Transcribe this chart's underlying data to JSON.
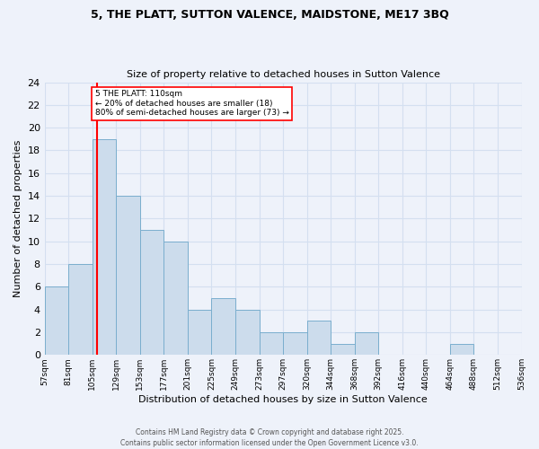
{
  "title1": "5, THE PLATT, SUTTON VALENCE, MAIDSTONE, ME17 3BQ",
  "title2": "Size of property relative to detached houses in Sutton Valence",
  "xlabel": "Distribution of detached houses by size in Sutton Valence",
  "ylabel": "Number of detached properties",
  "bar_values": [
    6,
    8,
    19,
    14,
    11,
    10,
    4,
    5,
    4,
    2,
    2,
    3,
    1,
    2,
    0,
    0,
    0,
    1,
    0,
    0
  ],
  "all_labels": [
    "57sqm",
    "81sqm",
    "105sqm",
    "129sqm",
    "153sqm",
    "177sqm",
    "201sqm",
    "225sqm",
    "249sqm",
    "273sqm",
    "297sqm",
    "320sqm",
    "344sqm",
    "368sqm",
    "392sqm",
    "416sqm",
    "440sqm",
    "464sqm",
    "488sqm",
    "512sqm",
    "536sqm"
  ],
  "bar_color": "#ccdcec",
  "bar_edge_color": "#7aaece",
  "grid_color": "#d4dff0",
  "annotation_text": "5 THE PLATT: 110sqm\n← 20% of detached houses are smaller (18)\n80% of semi-detached houses are larger (73) →",
  "vline_color": "red",
  "footer1": "Contains HM Land Registry data © Crown copyright and database right 2025.",
  "footer2": "Contains public sector information licensed under the Open Government Licence v3.0.",
  "ylim": [
    0,
    24
  ],
  "yticks": [
    0,
    2,
    4,
    6,
    8,
    10,
    12,
    14,
    16,
    18,
    20,
    22,
    24
  ],
  "background_color": "#eef2fa",
  "vline_pos": 2.208
}
